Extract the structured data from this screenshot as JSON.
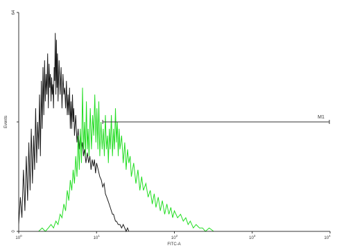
{
  "chart_data": {
    "type": "line",
    "xlabel": "FITC-A",
    "ylabel": "Events",
    "x_scale": "log",
    "xlim": [
      1,
      10000
    ],
    "ylim": [
      0,
      64
    ],
    "x_ticks": [
      1,
      10,
      100,
      1000,
      10000
    ],
    "x_tick_labels": [
      {
        "base": "10",
        "exp": "0"
      },
      {
        "base": "10",
        "exp": "1"
      },
      {
        "base": "10",
        "exp": "2"
      },
      {
        "base": "10",
        "exp": "3"
      },
      {
        "base": "10",
        "exp": "4"
      }
    ],
    "y_ticks": [
      0,
      32,
      64
    ],
    "y_tick_labels": [
      "0",
      "",
      "64"
    ],
    "grid": false,
    "series": [
      {
        "color": "#1a1a1a",
        "points": [
          [
            1.0,
            2
          ],
          [
            1.05,
            10
          ],
          [
            1.1,
            4
          ],
          [
            1.15,
            18
          ],
          [
            1.2,
            6
          ],
          [
            1.25,
            22
          ],
          [
            1.3,
            9
          ],
          [
            1.35,
            26
          ],
          [
            1.4,
            12
          ],
          [
            1.45,
            30
          ],
          [
            1.5,
            14
          ],
          [
            1.55,
            28
          ],
          [
            1.6,
            18
          ],
          [
            1.65,
            36
          ],
          [
            1.7,
            20
          ],
          [
            1.75,
            32
          ],
          [
            1.8,
            24
          ],
          [
            1.85,
            40
          ],
          [
            1.9,
            22
          ],
          [
            1.95,
            44
          ],
          [
            2.0,
            30
          ],
          [
            2.05,
            48
          ],
          [
            2.1,
            34
          ],
          [
            2.15,
            50
          ],
          [
            2.2,
            38
          ],
          [
            2.25,
            46
          ],
          [
            2.3,
            40
          ],
          [
            2.35,
            52
          ],
          [
            2.4,
            36
          ],
          [
            2.45,
            49
          ],
          [
            2.5,
            42
          ],
          [
            2.55,
            46
          ],
          [
            2.6,
            38
          ],
          [
            2.65,
            45
          ],
          [
            2.7,
            40
          ],
          [
            2.75,
            43
          ],
          [
            2.8,
            36
          ],
          [
            2.85,
            48
          ],
          [
            2.9,
            44
          ],
          [
            2.95,
            58
          ],
          [
            3.0,
            40
          ],
          [
            3.05,
            56
          ],
          [
            3.1,
            42
          ],
          [
            3.15,
            52
          ],
          [
            3.2,
            38
          ],
          [
            3.3,
            50
          ],
          [
            3.4,
            40
          ],
          [
            3.5,
            48
          ],
          [
            3.6,
            36
          ],
          [
            3.7,
            46
          ],
          [
            3.8,
            40
          ],
          [
            3.9,
            42
          ],
          [
            4.0,
            36
          ],
          [
            4.1,
            44
          ],
          [
            4.2,
            34
          ],
          [
            4.3,
            40
          ],
          [
            4.4,
            34
          ],
          [
            4.5,
            42
          ],
          [
            4.6,
            30
          ],
          [
            4.7,
            38
          ],
          [
            4.8,
            30
          ],
          [
            4.9,
            40
          ],
          [
            5.0,
            32
          ],
          [
            5.1,
            36
          ],
          [
            5.2,
            28
          ],
          [
            5.4,
            34
          ],
          [
            5.6,
            26
          ],
          [
            5.8,
            30
          ],
          [
            6.0,
            24
          ],
          [
            6.2,
            28
          ],
          [
            6.4,
            24
          ],
          [
            6.6,
            26
          ],
          [
            6.8,
            22
          ],
          [
            7.0,
            24
          ],
          [
            7.3,
            20
          ],
          [
            7.6,
            23
          ],
          [
            7.9,
            20
          ],
          [
            8.2,
            22
          ],
          [
            8.5,
            18
          ],
          [
            8.8,
            21
          ],
          [
            9.1,
            19
          ],
          [
            9.4,
            21
          ],
          [
            9.7,
            17
          ],
          [
            10.0,
            20
          ],
          [
            10.5,
            18
          ],
          [
            11.0,
            16
          ],
          [
            11.5,
            15
          ],
          [
            12.0,
            13
          ],
          [
            12.5,
            14
          ],
          [
            13.0,
            11
          ],
          [
            13.5,
            10
          ],
          [
            14.0,
            9
          ],
          [
            14.5,
            8
          ],
          [
            15.0,
            7
          ],
          [
            15.5,
            6
          ],
          [
            16.0,
            5
          ],
          [
            16.5,
            5
          ],
          [
            17.0,
            4
          ],
          [
            17.5,
            3
          ],
          [
            18.0,
            3
          ],
          [
            19.0,
            2
          ],
          [
            20.0,
            2
          ],
          [
            21.0,
            1
          ],
          [
            22.0,
            2
          ],
          [
            23.0,
            1
          ],
          [
            24.0,
            0
          ],
          [
            25.0,
            1
          ],
          [
            26.0,
            0
          ],
          [
            27.0,
            0
          ],
          [
            28.0,
            0
          ]
        ]
      },
      {
        "color": "#22dd22",
        "points": [
          [
            1.8,
            0
          ],
          [
            2.0,
            1
          ],
          [
            2.2,
            0
          ],
          [
            2.4,
            1
          ],
          [
            2.6,
            2
          ],
          [
            2.8,
            1
          ],
          [
            3.0,
            3
          ],
          [
            3.2,
            2
          ],
          [
            3.4,
            5
          ],
          [
            3.6,
            4
          ],
          [
            3.8,
            8
          ],
          [
            4.0,
            6
          ],
          [
            4.2,
            12
          ],
          [
            4.4,
            9
          ],
          [
            4.6,
            15
          ],
          [
            4.8,
            12
          ],
          [
            5.0,
            18
          ],
          [
            5.2,
            14
          ],
          [
            5.4,
            22
          ],
          [
            5.6,
            16
          ],
          [
            5.8,
            28
          ],
          [
            6.0,
            18
          ],
          [
            6.2,
            30
          ],
          [
            6.4,
            20
          ],
          [
            6.6,
            42
          ],
          [
            6.8,
            24
          ],
          [
            7.0,
            32
          ],
          [
            7.2,
            22
          ],
          [
            7.4,
            38
          ],
          [
            7.6,
            24
          ],
          [
            7.8,
            30
          ],
          [
            8.0,
            22
          ],
          [
            8.3,
            36
          ],
          [
            8.6,
            24
          ],
          [
            8.9,
            34
          ],
          [
            9.2,
            28
          ],
          [
            9.5,
            40
          ],
          [
            9.8,
            26
          ],
          [
            10.1,
            36
          ],
          [
            10.4,
            24
          ],
          [
            10.7,
            38
          ],
          [
            11.0,
            22
          ],
          [
            11.4,
            32
          ],
          [
            11.8,
            24
          ],
          [
            12.2,
            30
          ],
          [
            12.6,
            22
          ],
          [
            13.0,
            34
          ],
          [
            13.4,
            24
          ],
          [
            13.8,
            28
          ],
          [
            14.2,
            20
          ],
          [
            14.6,
            30
          ],
          [
            15.0,
            24
          ],
          [
            15.5,
            34
          ],
          [
            16.0,
            22
          ],
          [
            16.5,
            30
          ],
          [
            17.0,
            24
          ],
          [
            17.5,
            36
          ],
          [
            18.0,
            26
          ],
          [
            18.5,
            32
          ],
          [
            19.0,
            22
          ],
          [
            19.5,
            30
          ],
          [
            20.0,
            24
          ],
          [
            21.0,
            28
          ],
          [
            22.0,
            20
          ],
          [
            23.0,
            26
          ],
          [
            24.0,
            18
          ],
          [
            25.0,
            24
          ],
          [
            26.0,
            20
          ],
          [
            27.0,
            22
          ],
          [
            28.0,
            16
          ],
          [
            30.0,
            20
          ],
          [
            32.0,
            14
          ],
          [
            34.0,
            18
          ],
          [
            36.0,
            12
          ],
          [
            38.0,
            16
          ],
          [
            40.0,
            12
          ],
          [
            43.0,
            14
          ],
          [
            46.0,
            10
          ],
          [
            49.0,
            12
          ],
          [
            52.0,
            8
          ],
          [
            55.0,
            11
          ],
          [
            58.0,
            7
          ],
          [
            62.0,
            10
          ],
          [
            66.0,
            6
          ],
          [
            70.0,
            9
          ],
          [
            75.0,
            5
          ],
          [
            80.0,
            8
          ],
          [
            85.0,
            5
          ],
          [
            90.0,
            7
          ],
          [
            95.0,
            4
          ],
          [
            100.0,
            6
          ],
          [
            110.0,
            4
          ],
          [
            120.0,
            5
          ],
          [
            130.0,
            3
          ],
          [
            140.0,
            4
          ],
          [
            150.0,
            2
          ],
          [
            160.0,
            3
          ],
          [
            175.0,
            1
          ],
          [
            190.0,
            2
          ],
          [
            210.0,
            1
          ],
          [
            230.0,
            1
          ],
          [
            250.0,
            0
          ],
          [
            280.0,
            1
          ],
          [
            320.0,
            0
          ],
          [
            400.0,
            0
          ]
        ]
      }
    ],
    "marker": {
      "label": "M1",
      "x_start": 12,
      "x_end": 10000,
      "y": 32
    }
  }
}
